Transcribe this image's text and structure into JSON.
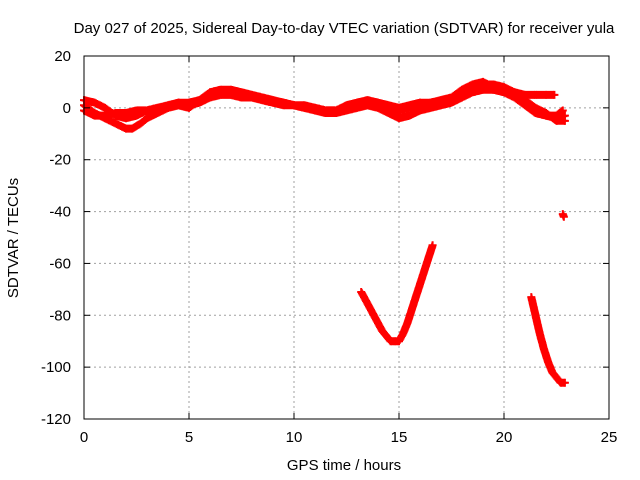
{
  "chart_data": {
    "type": "scatter",
    "title": "Day 027 of 2025, Sidereal Day-to-day VTEC variation (SDTVAR) for receiver yula",
    "xlabel": "GPS time / hours",
    "ylabel": "SDTVAR / TECUs",
    "xlim": [
      0,
      25
    ],
    "ylim": [
      -120,
      20
    ],
    "xticks": [
      0,
      5,
      10,
      15,
      20,
      25
    ],
    "yticks": [
      -120,
      -100,
      -80,
      -60,
      -40,
      -20,
      0,
      20
    ],
    "grid": true,
    "marker": "+",
    "color": "#ff0000",
    "series": [
      {
        "points": [
          [
            0,
            3
          ],
          [
            0.5,
            2
          ],
          [
            1,
            0
          ],
          [
            1.5,
            -3
          ],
          [
            2,
            -4
          ],
          [
            2.5,
            -3
          ],
          [
            3,
            -1
          ],
          [
            3.5,
            0
          ],
          [
            4,
            1
          ],
          [
            4.5,
            2
          ],
          [
            5,
            2
          ],
          [
            5.5,
            3
          ],
          [
            6,
            6
          ],
          [
            6.5,
            7
          ],
          [
            7,
            7
          ],
          [
            7.5,
            6
          ],
          [
            8,
            5
          ],
          [
            8.5,
            4
          ],
          [
            9,
            3
          ],
          [
            9.5,
            2
          ],
          [
            10,
            1
          ],
          [
            10.5,
            1
          ],
          [
            11,
            0
          ],
          [
            11.5,
            -1
          ],
          [
            12,
            -1
          ],
          [
            12.5,
            0
          ],
          [
            13,
            1
          ],
          [
            13.5,
            2
          ],
          [
            14,
            1
          ],
          [
            14.5,
            0
          ],
          [
            15,
            -1
          ],
          [
            15.5,
            0
          ],
          [
            16,
            1
          ],
          [
            16.5,
            1
          ],
          [
            17,
            2
          ],
          [
            17.5,
            3
          ],
          [
            18,
            5
          ],
          [
            18.5,
            7
          ],
          [
            19,
            8
          ],
          [
            19.5,
            7
          ],
          [
            20,
            6
          ],
          [
            20.5,
            4
          ],
          [
            21,
            1
          ],
          [
            21.5,
            -2
          ],
          [
            22,
            -3
          ],
          [
            22.5,
            -4
          ],
          [
            22.9,
            -3
          ]
        ]
      },
      {
        "points": [
          [
            0,
            1
          ],
          [
            0.5,
            -2
          ],
          [
            1,
            -4
          ],
          [
            1.5,
            -6
          ],
          [
            2,
            -8
          ],
          [
            2.3,
            -8
          ],
          [
            2.7,
            -6
          ],
          [
            3,
            -4
          ],
          [
            3.5,
            -2
          ],
          [
            4,
            0
          ],
          [
            4.5,
            1
          ],
          [
            5,
            0
          ],
          [
            5.5,
            3
          ],
          [
            6,
            5
          ],
          [
            6.5,
            6
          ],
          [
            7,
            6
          ],
          [
            7.5,
            5
          ],
          [
            8,
            4
          ],
          [
            8.5,
            3
          ],
          [
            9,
            2
          ],
          [
            9.5,
            1
          ],
          [
            10,
            1
          ],
          [
            10.5,
            0
          ],
          [
            11,
            -1
          ],
          [
            11.5,
            -2
          ],
          [
            12,
            -2
          ],
          [
            12.5,
            -1
          ],
          [
            13,
            0
          ],
          [
            13.5,
            1
          ],
          [
            14,
            0
          ],
          [
            14.5,
            -2
          ],
          [
            15,
            -4
          ],
          [
            15.5,
            -3
          ],
          [
            16,
            -1
          ],
          [
            16.5,
            0
          ],
          [
            17,
            1
          ],
          [
            17.5,
            2
          ],
          [
            18,
            4
          ],
          [
            18.5,
            6
          ],
          [
            19,
            7
          ],
          [
            19.5,
            7
          ],
          [
            20,
            7
          ],
          [
            20.5,
            5
          ],
          [
            21,
            3
          ],
          [
            21.5,
            0
          ],
          [
            22,
            -2
          ],
          [
            22.5,
            -5
          ],
          [
            22.9,
            -5
          ]
        ]
      },
      {
        "points": [
          [
            0,
            -1
          ],
          [
            0.5,
            -3
          ],
          [
            1,
            -3
          ],
          [
            1.5,
            -2
          ],
          [
            2,
            -2
          ],
          [
            2.5,
            -1
          ],
          [
            3,
            -1
          ],
          [
            3.5,
            0
          ],
          [
            4,
            0
          ],
          [
            4.5,
            2
          ],
          [
            5,
            1
          ],
          [
            5.5,
            2
          ],
          [
            6,
            4
          ],
          [
            6.5,
            5
          ],
          [
            7,
            5
          ],
          [
            7.5,
            4
          ],
          [
            8,
            4
          ],
          [
            8.5,
            3
          ],
          [
            9,
            2
          ],
          [
            9.5,
            2
          ],
          [
            10,
            1
          ],
          [
            10.5,
            0
          ],
          [
            11,
            0
          ],
          [
            11.5,
            -1
          ],
          [
            12,
            -1
          ],
          [
            12.5,
            1
          ],
          [
            13,
            2
          ],
          [
            13.5,
            3
          ],
          [
            14,
            2
          ],
          [
            14.5,
            1
          ],
          [
            15,
            0
          ],
          [
            15.5,
            1
          ],
          [
            16,
            2
          ],
          [
            16.5,
            2
          ],
          [
            17,
            3
          ],
          [
            17.5,
            4
          ],
          [
            18,
            6
          ],
          [
            18.5,
            8
          ],
          [
            19,
            9
          ],
          [
            19.5,
            9
          ],
          [
            20,
            8
          ],
          [
            20.5,
            6
          ],
          [
            21,
            3
          ],
          [
            21.5,
            -1
          ],
          [
            22,
            -3
          ],
          [
            22.5,
            -3
          ],
          [
            22.8,
            -1
          ]
        ]
      },
      {
        "points": [
          [
            17,
            2
          ],
          [
            17.5,
            4
          ],
          [
            18,
            7
          ],
          [
            18.5,
            9
          ],
          [
            19,
            10
          ],
          [
            19.5,
            8
          ],
          [
            20,
            7
          ],
          [
            20.5,
            6
          ],
          [
            21,
            5
          ],
          [
            21.5,
            5
          ],
          [
            22,
            5
          ],
          [
            22.4,
            5
          ]
        ]
      },
      {
        "points": [
          [
            13.2,
            -71
          ],
          [
            13.4,
            -74
          ],
          [
            13.6,
            -77
          ],
          [
            13.8,
            -80
          ],
          [
            14,
            -83
          ],
          [
            14.2,
            -86
          ],
          [
            14.4,
            -88
          ],
          [
            14.6,
            -90
          ],
          [
            14.8,
            -90
          ],
          [
            15,
            -90
          ],
          [
            15.2,
            -87
          ],
          [
            15.4,
            -83
          ],
          [
            15.6,
            -78
          ],
          [
            15.8,
            -73
          ],
          [
            16,
            -68
          ],
          [
            16.2,
            -63
          ],
          [
            16.4,
            -58
          ],
          [
            16.6,
            -53
          ]
        ]
      },
      {
        "points": [
          [
            21.3,
            -73
          ],
          [
            21.5,
            -80
          ],
          [
            21.7,
            -87
          ],
          [
            21.9,
            -93
          ],
          [
            22.1,
            -98
          ],
          [
            22.3,
            -102
          ],
          [
            22.5,
            -104
          ],
          [
            22.7,
            -106
          ],
          [
            22.9,
            -106
          ]
        ]
      },
      {
        "points": [
          [
            22.8,
            -41
          ],
          [
            22.85,
            -42
          ]
        ]
      }
    ]
  }
}
